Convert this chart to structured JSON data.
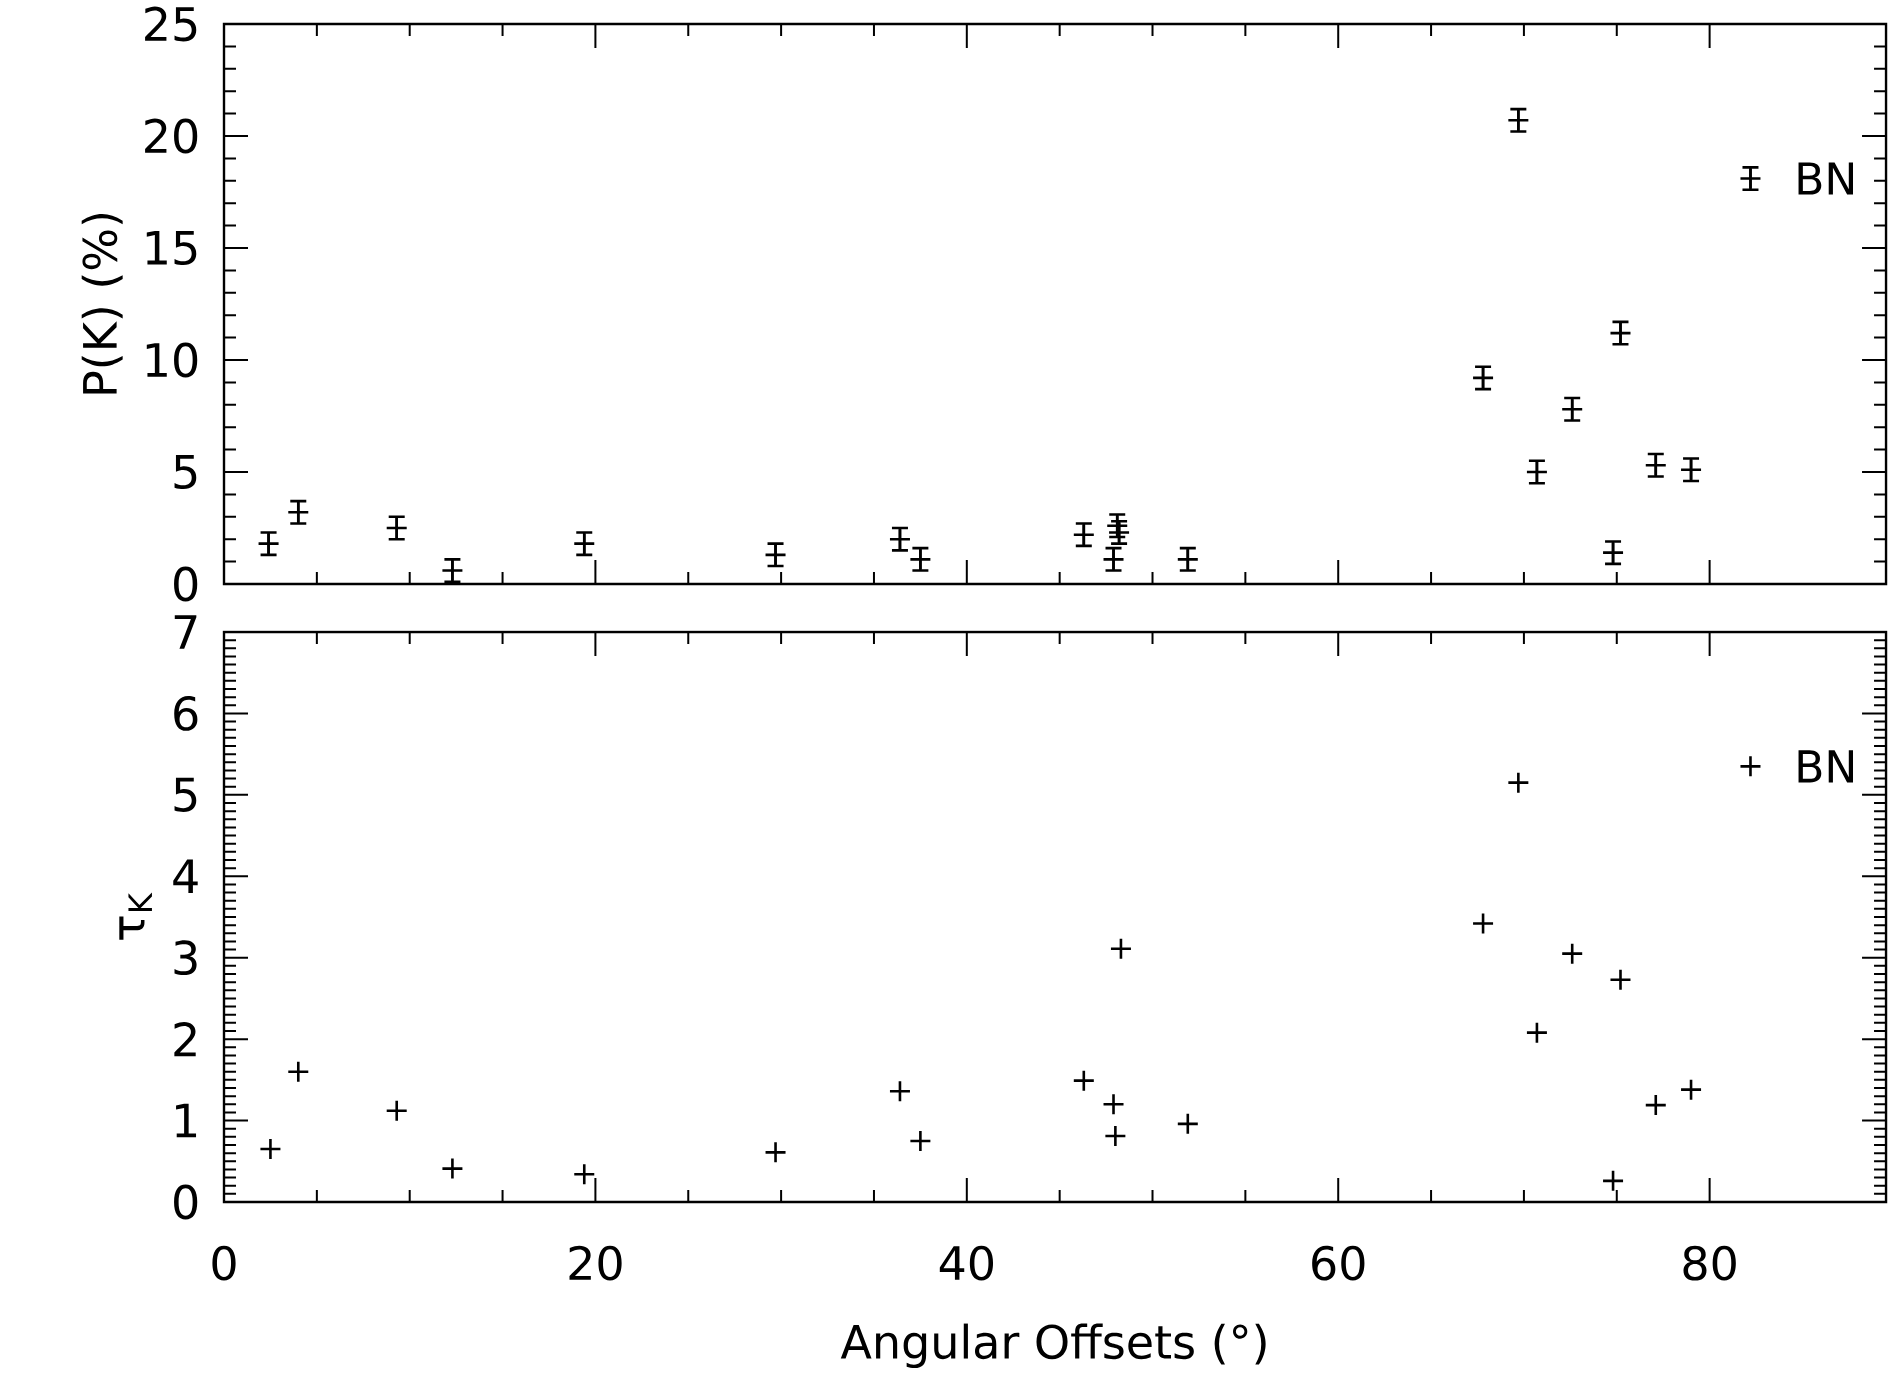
{
  "chart_data": [
    {
      "type": "scatter",
      "ylabel": "P(K) (%)",
      "xlim": [
        0,
        89.5
      ],
      "xticks": [
        0,
        20,
        40,
        60,
        80
      ],
      "ylim": [
        0,
        25
      ],
      "yticks": [
        0,
        5,
        10,
        15,
        20,
        25
      ],
      "tick_labels": "y",
      "marker": "cross",
      "series": [
        {
          "color": "#000000",
          "x": [
            2.4,
            4.0,
            9.3,
            12.3,
            19.4,
            29.7,
            36.4,
            37.5,
            46.3,
            47.9,
            48.1,
            48.2,
            51.9,
            67.8,
            69.7,
            70.7,
            72.6,
            74.8,
            75.2,
            77.1,
            79.0,
            82.2
          ],
          "values": [
            1.8,
            3.2,
            2.5,
            0.6,
            1.8,
            1.3,
            2.0,
            1.1,
            2.2,
            1.1,
            2.6,
            2.3,
            1.1,
            9.2,
            20.7,
            5.0,
            7.8,
            1.4,
            11.2,
            5.3,
            5.1,
            18.1
          ],
          "errors": [
            0.5,
            0.5,
            0.5,
            0.5,
            0.5,
            0.5,
            0.5,
            0.5,
            0.5,
            0.5,
            0.5,
            0.5,
            0.5,
            0.5,
            0.5,
            0.5,
            0.5,
            0.5,
            0.5,
            0.5,
            0.5,
            0.5
          ]
        }
      ],
      "annotations": [
        {
          "text": "BN",
          "x": 82.2,
          "y": 18.1
        }
      ]
    },
    {
      "type": "scatter",
      "xlabel": "Angular Offsets (°)",
      "ylabel": "τ$_{K}$",
      "xlim": [
        0,
        89.5
      ],
      "xticks": [
        0,
        20,
        40,
        60,
        80
      ],
      "ylim": [
        0,
        7
      ],
      "yticks": [
        0,
        1,
        2,
        3,
        4,
        5,
        6,
        7
      ],
      "marker": "cross",
      "series": [
        {
          "color": "#000000",
          "x": [
            2.5,
            4.0,
            9.3,
            12.3,
            19.4,
            29.7,
            36.4,
            37.5,
            46.3,
            47.9,
            48.0,
            48.3,
            51.9,
            67.8,
            69.7,
            70.7,
            72.6,
            74.8,
            75.2,
            77.1,
            79.0,
            82.2
          ],
          "values": [
            0.65,
            1.6,
            1.12,
            0.41,
            0.34,
            0.61,
            1.36,
            0.75,
            1.49,
            1.2,
            0.81,
            3.11,
            0.96,
            3.42,
            5.15,
            2.08,
            3.05,
            0.26,
            2.73,
            1.19,
            1.38,
            5.35
          ]
        }
      ],
      "annotations": [
        {
          "text": "BN",
          "x": 82.2,
          "y": 5.35
        }
      ]
    }
  ]
}
